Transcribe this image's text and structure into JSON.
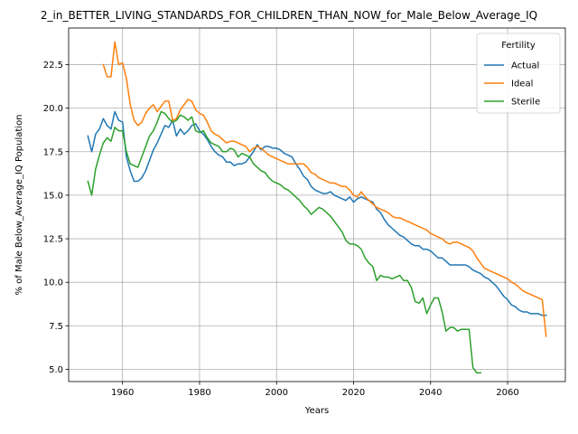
{
  "chart_data": {
    "type": "line",
    "title": "2_in_BETTER_LIVING_STANDARDS_FOR_CHILDREN_THAN_NOW_for_Male_Below_Average_IQ",
    "xlabel": "Years",
    "ylabel": "% of Male Below_Average_IQ Population",
    "xlim": [
      1946,
      2075
    ],
    "ylim": [
      4.3,
      24.6
    ],
    "x_ticks": [
      1960,
      1980,
      2000,
      2020,
      2040,
      2060
    ],
    "y_ticks": [
      5.0,
      7.5,
      10.0,
      12.5,
      15.0,
      17.5,
      20.0,
      22.5
    ],
    "x_tick_labels": [
      "1960",
      "1980",
      "2000",
      "2020",
      "2040",
      "2060"
    ],
    "y_tick_labels": [
      "5.0",
      "7.5",
      "10.0",
      "12.5",
      "15.0",
      "17.5",
      "20.0",
      "22.5"
    ],
    "grid": true,
    "legend": {
      "title": "Fertility",
      "placement": "top-right"
    },
    "series": [
      {
        "name": "Actual",
        "color": "#1f77b4",
        "x": [
          1951,
          1952,
          1953,
          1954,
          1955,
          1956,
          1957,
          1958,
          1959,
          1960,
          1961,
          1962,
          1963,
          1964,
          1965,
          1966,
          1967,
          1968,
          1969,
          1970,
          1971,
          1972,
          1973,
          1974,
          1975,
          1976,
          1977,
          1978,
          1979,
          1980,
          1981,
          1982,
          1983,
          1984,
          1985,
          1986,
          1987,
          1988,
          1989,
          1990,
          1991,
          1992,
          1993,
          1994,
          1995,
          1996,
          1997,
          1998,
          1999,
          2000,
          2001,
          2002,
          2003,
          2004,
          2005,
          2006,
          2007,
          2008,
          2009,
          2010,
          2011,
          2012,
          2013,
          2014,
          2015,
          2016,
          2017,
          2018,
          2019,
          2020,
          2021,
          2022,
          2023,
          2024,
          2025,
          2026,
          2027,
          2028,
          2029,
          2030,
          2031,
          2032,
          2033,
          2034,
          2035,
          2036,
          2037,
          2038,
          2039,
          2040,
          2041,
          2042,
          2043,
          2044,
          2045,
          2046,
          2047,
          2048,
          2049,
          2050,
          2051,
          2052,
          2053,
          2054,
          2055,
          2056,
          2057,
          2058,
          2059,
          2060,
          2061,
          2062,
          2063,
          2064,
          2065,
          2066,
          2067,
          2068,
          2069,
          2070
        ],
        "y": [
          18.4,
          17.5,
          18.5,
          18.8,
          19.4,
          19.0,
          18.8,
          19.8,
          19.3,
          19.2,
          17.2,
          16.4,
          15.8,
          15.8,
          16.0,
          16.4,
          17.0,
          17.6,
          18.0,
          18.5,
          19.0,
          18.9,
          19.3,
          18.4,
          18.8,
          18.5,
          18.7,
          19.0,
          19.1,
          18.7,
          18.5,
          18.2,
          17.8,
          17.5,
          17.3,
          17.2,
          16.9,
          16.9,
          16.7,
          16.8,
          16.8,
          16.9,
          17.2,
          17.5,
          17.9,
          17.6,
          17.8,
          17.8,
          17.7,
          17.7,
          17.6,
          17.4,
          17.3,
          17.2,
          16.8,
          16.5,
          16.1,
          15.9,
          15.5,
          15.3,
          15.2,
          15.1,
          15.1,
          15.2,
          15.0,
          14.9,
          14.8,
          14.7,
          14.9,
          14.6,
          14.8,
          14.9,
          14.8,
          14.7,
          14.6,
          14.2,
          14.0,
          13.6,
          13.3,
          13.1,
          12.9,
          12.7,
          12.6,
          12.4,
          12.2,
          12.1,
          12.1,
          11.9,
          11.9,
          11.8,
          11.6,
          11.4,
          11.4,
          11.2,
          11.0,
          11.0,
          11.0,
          11.0,
          11.0,
          10.9,
          10.7,
          10.6,
          10.5,
          10.3,
          10.2,
          10.0,
          9.8,
          9.5,
          9.2,
          9.0,
          8.7,
          8.6,
          8.4,
          8.3,
          8.3,
          8.2,
          8.2,
          8.2,
          8.1,
          8.1
        ]
      },
      {
        "name": "Ideal",
        "color": "#ff7f0e",
        "x": [
          1955,
          1956,
          1957,
          1958,
          1959,
          1960,
          1961,
          1962,
          1963,
          1964,
          1965,
          1966,
          1967,
          1968,
          1969,
          1970,
          1971,
          1972,
          1973,
          1974,
          1975,
          1976,
          1977,
          1978,
          1979,
          1980,
          1981,
          1982,
          1983,
          1984,
          1985,
          1986,
          1987,
          1988,
          1989,
          1990,
          1991,
          1992,
          1993,
          1994,
          1995,
          1996,
          1997,
          1998,
          1999,
          2000,
          2001,
          2002,
          2003,
          2004,
          2005,
          2006,
          2007,
          2008,
          2009,
          2010,
          2011,
          2012,
          2013,
          2014,
          2015,
          2016,
          2017,
          2018,
          2019,
          2020,
          2021,
          2022,
          2023,
          2024,
          2025,
          2026,
          2027,
          2028,
          2029,
          2030,
          2031,
          2032,
          2033,
          2034,
          2035,
          2036,
          2037,
          2038,
          2039,
          2040,
          2041,
          2042,
          2043,
          2044,
          2045,
          2046,
          2047,
          2048,
          2049,
          2050,
          2051,
          2052,
          2053,
          2054,
          2055,
          2056,
          2057,
          2058,
          2059,
          2060,
          2061,
          2062,
          2063,
          2064,
          2065,
          2066,
          2067,
          2068,
          2069,
          2070
        ],
        "y": [
          22.5,
          21.8,
          21.8,
          23.8,
          22.5,
          22.6,
          21.7,
          20.2,
          19.3,
          19.0,
          19.2,
          19.7,
          20.0,
          20.2,
          19.8,
          20.1,
          20.4,
          20.4,
          19.3,
          19.4,
          19.9,
          20.2,
          20.5,
          20.4,
          19.9,
          19.7,
          19.6,
          19.2,
          18.7,
          18.5,
          18.4,
          18.2,
          18.0,
          18.1,
          18.1,
          18.0,
          17.9,
          17.8,
          17.5,
          17.7,
          17.8,
          17.7,
          17.5,
          17.3,
          17.2,
          17.1,
          17.0,
          16.9,
          16.8,
          16.8,
          16.8,
          16.8,
          16.8,
          16.6,
          16.3,
          16.2,
          16.0,
          15.9,
          15.8,
          15.7,
          15.7,
          15.6,
          15.5,
          15.5,
          15.3,
          15.0,
          14.9,
          15.2,
          14.9,
          14.7,
          14.5,
          14.3,
          14.2,
          14.1,
          14.0,
          13.8,
          13.7,
          13.7,
          13.6,
          13.5,
          13.4,
          13.3,
          13.2,
          13.1,
          13.0,
          12.8,
          12.7,
          12.6,
          12.5,
          12.3,
          12.2,
          12.3,
          12.3,
          12.2,
          12.1,
          12.0,
          11.8,
          11.4,
          11.1,
          10.8,
          10.7,
          10.6,
          10.5,
          10.4,
          10.3,
          10.2,
          10.0,
          9.9,
          9.7,
          9.5,
          9.4,
          9.3,
          9.2,
          9.1,
          9.0,
          6.9
        ]
      },
      {
        "name": "Sterile",
        "color": "#2ca02c",
        "x": [
          1951,
          1952,
          1953,
          1954,
          1955,
          1956,
          1957,
          1958,
          1959,
          1960,
          1961,
          1962,
          1963,
          1964,
          1965,
          1966,
          1967,
          1968,
          1969,
          1970,
          1971,
          1972,
          1973,
          1974,
          1975,
          1976,
          1977,
          1978,
          1979,
          1980,
          1981,
          1982,
          1983,
          1984,
          1985,
          1986,
          1987,
          1988,
          1989,
          1990,
          1991,
          1992,
          1993,
          1994,
          1995,
          1996,
          1997,
          1998,
          1999,
          2000,
          2001,
          2002,
          2003,
          2004,
          2005,
          2006,
          2007,
          2008,
          2009,
          2010,
          2011,
          2012,
          2013,
          2014,
          2015,
          2016,
          2017,
          2018,
          2019,
          2020,
          2021,
          2022,
          2023,
          2024,
          2025,
          2026,
          2027,
          2028,
          2029,
          2030,
          2031,
          2032,
          2033,
          2034,
          2035,
          2036,
          2037,
          2038,
          2039,
          2040,
          2041,
          2042,
          2043,
          2044,
          2045,
          2046,
          2047,
          2048,
          2049,
          2050,
          2051,
          2052,
          2053
        ],
        "y": [
          15.8,
          15.0,
          16.5,
          17.3,
          18.0,
          18.3,
          18.1,
          18.9,
          18.7,
          18.7,
          17.5,
          16.8,
          16.7,
          16.6,
          17.2,
          17.8,
          18.4,
          18.7,
          19.2,
          19.8,
          19.7,
          19.4,
          19.2,
          19.3,
          19.6,
          19.5,
          19.3,
          19.5,
          18.7,
          18.6,
          18.7,
          18.3,
          18.0,
          17.9,
          17.8,
          17.5,
          17.5,
          17.7,
          17.6,
          17.2,
          17.4,
          17.3,
          17.2,
          16.8,
          16.6,
          16.4,
          16.3,
          16.0,
          15.8,
          15.7,
          15.6,
          15.4,
          15.3,
          15.1,
          14.9,
          14.7,
          14.4,
          14.2,
          13.9,
          14.1,
          14.3,
          14.2,
          14.0,
          13.8,
          13.5,
          13.2,
          12.9,
          12.4,
          12.2,
          12.2,
          12.1,
          11.9,
          11.4,
          11.1,
          10.9,
          10.1,
          10.4,
          10.3,
          10.3,
          10.2,
          10.3,
          10.4,
          10.1,
          10.1,
          9.7,
          8.9,
          8.8,
          9.1,
          8.2,
          8.7,
          9.1,
          9.1,
          8.3,
          7.2,
          7.4,
          7.4,
          7.2,
          7.3,
          7.3,
          7.3,
          5.1,
          4.8,
          4.8
        ]
      }
    ]
  }
}
